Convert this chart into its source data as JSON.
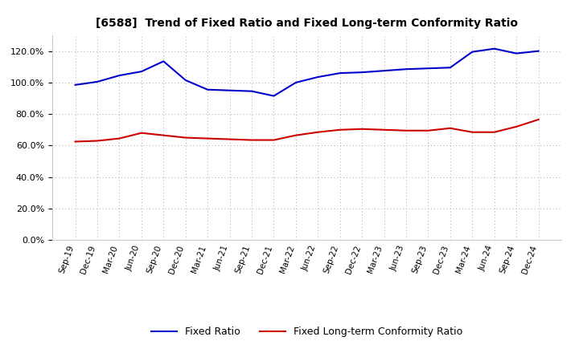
{
  "title": "[6588]  Trend of Fixed Ratio and Fixed Long-term Conformity Ratio",
  "x_labels": [
    "Sep-19",
    "Dec-19",
    "Mar-20",
    "Jun-20",
    "Sep-20",
    "Dec-20",
    "Mar-21",
    "Jun-21",
    "Sep-21",
    "Dec-21",
    "Mar-22",
    "Jun-22",
    "Sep-22",
    "Dec-22",
    "Mar-23",
    "Jun-23",
    "Sep-23",
    "Dec-23",
    "Mar-24",
    "Jun-24",
    "Sep-24",
    "Dec-24"
  ],
  "fixed_ratio": [
    98.5,
    100.5,
    104.5,
    107.0,
    113.5,
    101.5,
    95.5,
    95.0,
    94.5,
    91.5,
    100.0,
    103.5,
    106.0,
    106.5,
    107.5,
    108.5,
    109.0,
    109.5,
    119.5,
    121.5,
    118.5,
    120.0
  ],
  "fixed_lt_ratio": [
    62.5,
    63.0,
    64.5,
    68.0,
    66.5,
    65.0,
    64.5,
    64.0,
    63.5,
    63.5,
    66.5,
    68.5,
    70.0,
    70.5,
    70.0,
    69.5,
    69.5,
    71.0,
    68.5,
    68.5,
    72.0,
    76.5
  ],
  "fixed_ratio_color": "#0000cc",
  "fixed_lt_ratio_color": "#cc0000",
  "ylim": [
    0,
    130
  ],
  "yticks": [
    0,
    20,
    40,
    60,
    80,
    100,
    120
  ],
  "background_color": "#ffffff",
  "grid_color": "#aaaaaa",
  "legend_fixed_ratio": "Fixed Ratio",
  "legend_fixed_lt_ratio": "Fixed Long-term Conformity Ratio"
}
